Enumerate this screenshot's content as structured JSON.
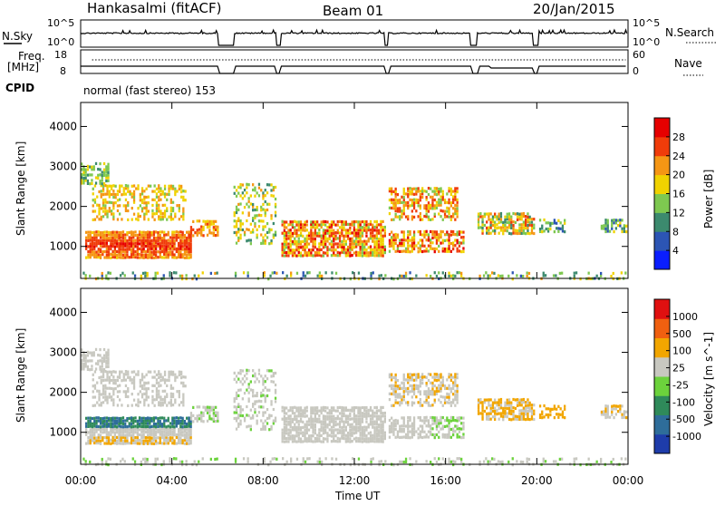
{
  "header": {
    "station": "Hankasalmi (fitACF)",
    "beam": "Beam 01",
    "date": "20/Jan/2015"
  },
  "strip_labels": {
    "nsky": "N.Sky",
    "nsky_ticks": [
      "10^5",
      "10^0"
    ],
    "nsearch": "N.Search",
    "nsearch_ticks": [
      "10^5",
      "10^0"
    ],
    "freq": "Freq.",
    "freq_unit": "[MHz]",
    "freq_ticks": [
      "18",
      "8"
    ],
    "nave": "Nave",
    "nave_ticks": [
      "60",
      "0"
    ],
    "cpid": "CPID",
    "cpid_value": "normal (fast stereo) 153"
  },
  "chart_data": [
    {
      "type": "heatmap",
      "name": "power",
      "ylabel": "Slant Range [km]",
      "yticks": [
        "1000",
        "2000",
        "3000",
        "4000"
      ],
      "ylim": [
        200,
        4600
      ],
      "xlim_hours": [
        0,
        24
      ],
      "colorbar": {
        "label": "Power [dB]",
        "ticks": [
          "4",
          "8",
          "12",
          "16",
          "20",
          "24",
          "28"
        ],
        "range": [
          0,
          32
        ],
        "colors": [
          "#0a1eff",
          "#2c55b4",
          "#3c8a6e",
          "#7ec850",
          "#f0d200",
          "#f59614",
          "#f03c0a",
          "#e60000"
        ]
      },
      "data_gaps_hours": [
        [
          6.0,
          6.7
        ],
        [
          8.55,
          8.75
        ],
        [
          13.35,
          13.5
        ],
        [
          17.1,
          17.4
        ],
        [
          19.85,
          20.1
        ]
      ],
      "echo_regions": [
        {
          "t": [
            0,
            6.1
          ],
          "r": [
            700,
            1500
          ],
          "level": "28+"
        },
        {
          "t": [
            0,
            4.5
          ],
          "r": [
            1700,
            2600
          ],
          "level": "12-20"
        },
        {
          "t": [
            0,
            1.0
          ],
          "r": [
            2600,
            3100
          ],
          "level": "8-16"
        },
        {
          "t": [
            8.8,
            13.3
          ],
          "r": [
            800,
            1800
          ],
          "level": "16-28"
        },
        {
          "t": [
            13.5,
            16.8
          ],
          "r": [
            800,
            2600
          ],
          "level": "12-28"
        },
        {
          "t": [
            17.4,
            21
          ],
          "r": [
            1300,
            1900
          ],
          "level": "8-24"
        },
        {
          "t": [
            22.8,
            23.9
          ],
          "r": [
            1400,
            1700
          ],
          "level": "4-12"
        }
      ]
    },
    {
      "type": "heatmap",
      "name": "velocity",
      "ylabel": "Slant Range [km]",
      "yticks": [
        "1000",
        "2000",
        "3000",
        "4000"
      ],
      "ylim": [
        200,
        4600
      ],
      "xlim_hours": [
        0,
        24
      ],
      "colorbar": {
        "label": "Velocity [m s^-1]",
        "ticks": [
          "1000",
          "500",
          "100",
          "25",
          "-25",
          "-100",
          "-500",
          "-1000"
        ],
        "colors": [
          "#1e3caa",
          "#2e6d9a",
          "#2f8a5a",
          "#6cd23c",
          "#c8c8c0",
          "#f2a600",
          "#f06010",
          "#e01010"
        ]
      },
      "data_gaps_hours": [
        [
          6.0,
          6.7
        ],
        [
          8.55,
          8.75
        ],
        [
          13.35,
          13.5
        ],
        [
          17.1,
          17.4
        ],
        [
          19.85,
          20.1
        ]
      ]
    }
  ],
  "xaxis": {
    "label": "Time UT",
    "ticks": [
      "00:00",
      "04:00",
      "08:00",
      "12:00",
      "16:00",
      "20:00",
      "00:00"
    ]
  }
}
